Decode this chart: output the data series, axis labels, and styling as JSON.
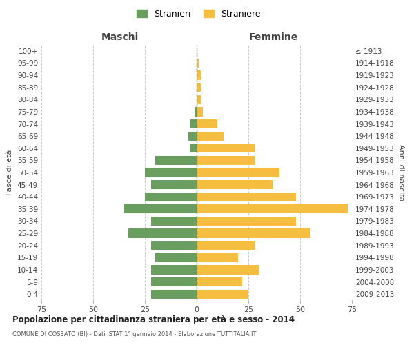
{
  "age_groups": [
    "0-4",
    "5-9",
    "10-14",
    "15-19",
    "20-24",
    "25-29",
    "30-34",
    "35-39",
    "40-44",
    "45-49",
    "50-54",
    "55-59",
    "60-64",
    "65-69",
    "70-74",
    "75-79",
    "80-84",
    "85-89",
    "90-94",
    "95-99",
    "100+"
  ],
  "birth_years": [
    "2009-2013",
    "2004-2008",
    "1999-2003",
    "1994-1998",
    "1989-1993",
    "1984-1988",
    "1979-1983",
    "1974-1978",
    "1969-1973",
    "1964-1968",
    "1959-1963",
    "1954-1958",
    "1949-1953",
    "1944-1948",
    "1939-1943",
    "1934-1938",
    "1929-1933",
    "1924-1928",
    "1919-1923",
    "1914-1918",
    "≤ 1913"
  ],
  "males": [
    22,
    22,
    22,
    20,
    22,
    33,
    22,
    35,
    25,
    22,
    25,
    20,
    3,
    4,
    3,
    1,
    0,
    0,
    0,
    0,
    0
  ],
  "females": [
    25,
    22,
    30,
    20,
    28,
    55,
    48,
    73,
    48,
    37,
    40,
    28,
    28,
    13,
    10,
    3,
    2,
    2,
    2,
    1,
    0
  ],
  "male_color": "#6a9e5e",
  "female_color": "#f5be41",
  "background_color": "#ffffff",
  "grid_color": "#cccccc",
  "title": "Popolazione per cittadinanza straniera per età e sesso - 2014",
  "subtitle": "COMUNE DI COSSATO (BI) - Dati ISTAT 1° gennaio 2014 - Elaborazione TUTTITALIA.IT",
  "xlabel_left": "Maschi",
  "xlabel_right": "Femmine",
  "ylabel_left": "Fasce di età",
  "ylabel_right": "Anni di nascita",
  "legend_male": "Stranieri",
  "legend_female": "Straniere",
  "xlim": 75,
  "xtick_positions": [
    -75,
    -50,
    -25,
    0,
    25,
    50,
    75
  ],
  "xtick_labels": [
    "75",
    "50",
    "25",
    "0",
    "25",
    "50",
    "75"
  ]
}
